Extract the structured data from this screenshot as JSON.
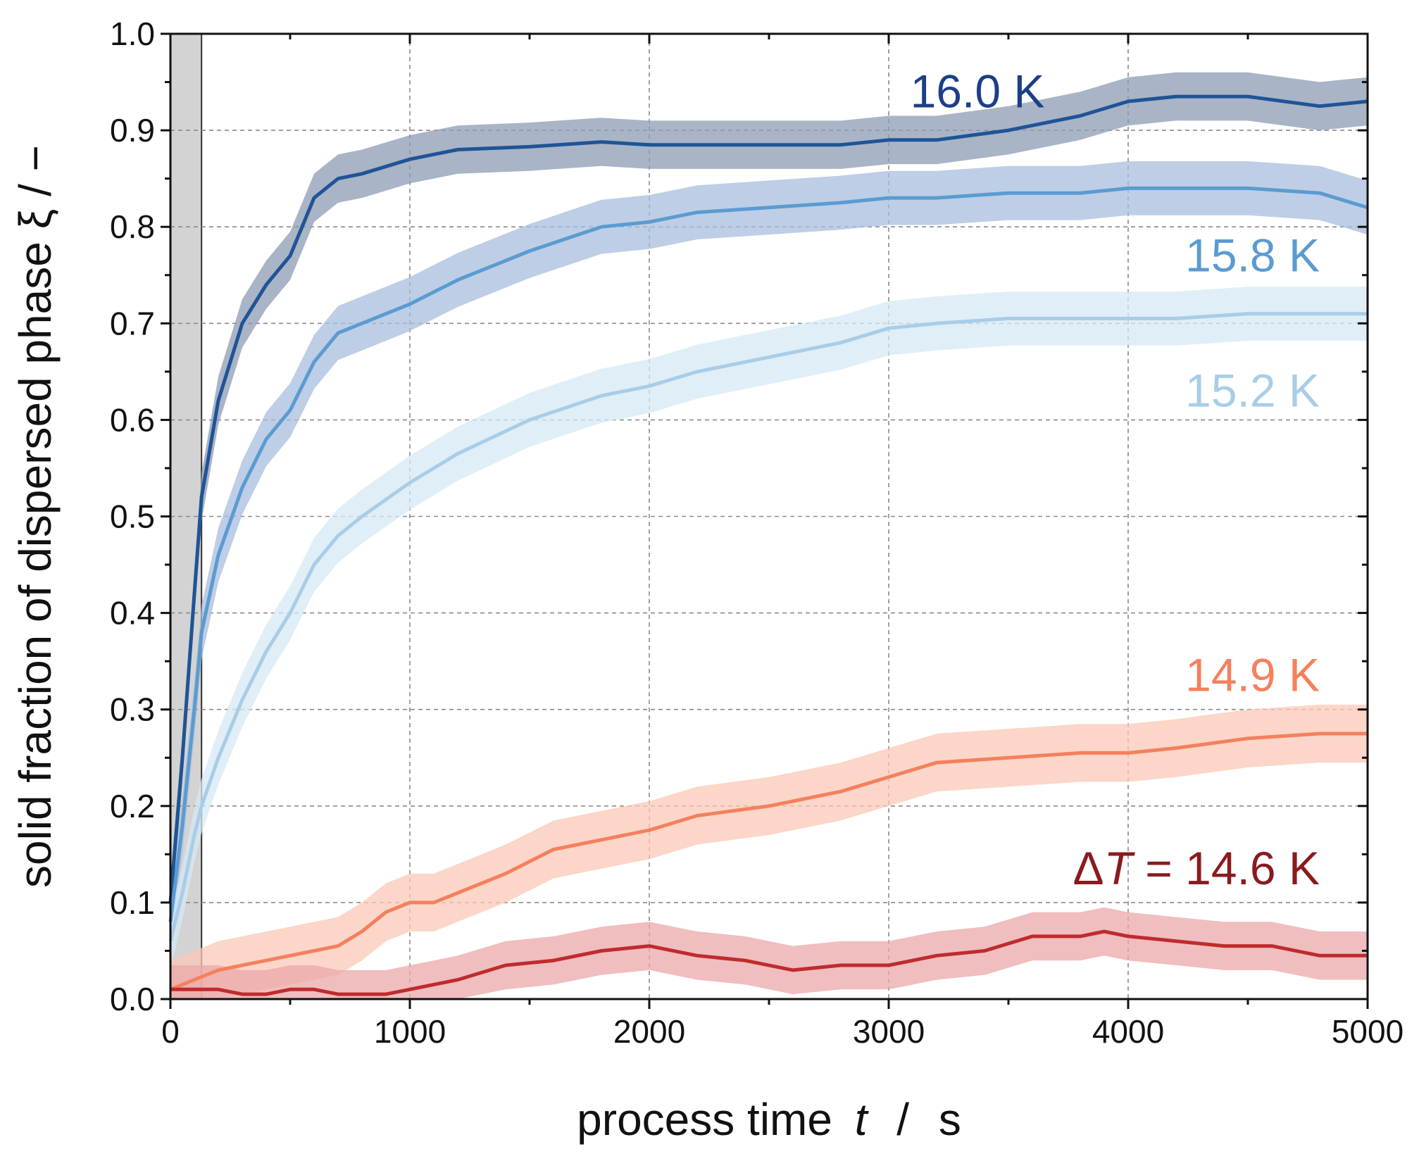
{
  "chart_data": {
    "type": "line",
    "title": "",
    "xlabel": "process time",
    "xlabel_symbol": "t",
    "xlabel_sep": "/",
    "xlabel_unit": "s",
    "ylabel": "solid fraction of dispersed phase ξ  /  −",
    "xlim": [
      0,
      5000
    ],
    "ylim": [
      0,
      1.0
    ],
    "xticks": [
      0,
      1000,
      2000,
      3000,
      4000,
      5000
    ],
    "xtick_labels": [
      "0",
      "1000",
      "2000",
      "3000",
      "4000",
      "5000"
    ],
    "yticks": [
      0.0,
      0.1,
      0.2,
      0.3,
      0.4,
      0.5,
      0.6,
      0.7,
      0.8,
      0.9,
      1.0
    ],
    "ytick_labels": [
      "0.0",
      "0.1",
      "0.2",
      "0.3",
      "0.4",
      "0.5",
      "0.6",
      "0.7",
      "0.8",
      "0.9",
      "1.0"
    ],
    "grid": true,
    "shaded_region": {
      "x_start": 0,
      "x_end": 130,
      "color": "#d3d3d3"
    },
    "series": [
      {
        "name": "16.0 K",
        "label": "16.0 K",
        "color": "#1f5496",
        "band_color": "#8c9bb4",
        "band_halfwidth": 0.025,
        "label_pos": [
          2900,
          0.94
        ],
        "x": [
          0,
          50,
          100,
          130,
          200,
          300,
          400,
          500,
          600,
          700,
          800,
          1000,
          1200,
          1500,
          1800,
          2000,
          2200,
          2500,
          2800,
          3000,
          3200,
          3500,
          3800,
          4000,
          4200,
          4500,
          4800,
          5000
        ],
        "y": [
          0.1,
          0.25,
          0.42,
          0.52,
          0.62,
          0.7,
          0.74,
          0.77,
          0.83,
          0.85,
          0.855,
          0.87,
          0.88,
          0.883,
          0.888,
          0.885,
          0.885,
          0.885,
          0.885,
          0.89,
          0.89,
          0.9,
          0.915,
          0.93,
          0.935,
          0.935,
          0.925,
          0.93
        ]
      },
      {
        "name": "15.8 K",
        "label": "15.8 K",
        "color": "#5b9bd0",
        "band_color": "#a8bedd",
        "band_halfwidth": 0.028,
        "label_pos": [
          4800,
          0.77
        ],
        "x": [
          0,
          50,
          100,
          130,
          200,
          300,
          400,
          500,
          600,
          700,
          800,
          1000,
          1200,
          1500,
          1800,
          2000,
          2200,
          2500,
          2800,
          3000,
          3200,
          3500,
          3800,
          4000,
          4200,
          4500,
          4800,
          5000
        ],
        "y": [
          0.08,
          0.18,
          0.3,
          0.38,
          0.46,
          0.53,
          0.58,
          0.61,
          0.66,
          0.69,
          0.7,
          0.72,
          0.745,
          0.775,
          0.8,
          0.805,
          0.815,
          0.82,
          0.825,
          0.83,
          0.83,
          0.835,
          0.835,
          0.84,
          0.84,
          0.84,
          0.835,
          0.82
        ]
      },
      {
        "name": "15.2 K",
        "label": "15.2 K",
        "color": "#a9cde7",
        "band_color": "#d6e8f4",
        "band_halfwidth": 0.028,
        "label_pos": [
          4800,
          0.63
        ],
        "x": [
          0,
          50,
          100,
          130,
          200,
          300,
          400,
          500,
          600,
          700,
          800,
          1000,
          1200,
          1500,
          1800,
          2000,
          2200,
          2500,
          2800,
          3000,
          3200,
          3500,
          3800,
          4000,
          4200,
          4500,
          4800,
          5000
        ],
        "y": [
          0.06,
          0.11,
          0.17,
          0.2,
          0.25,
          0.31,
          0.36,
          0.4,
          0.45,
          0.48,
          0.5,
          0.535,
          0.565,
          0.6,
          0.625,
          0.635,
          0.65,
          0.665,
          0.68,
          0.695,
          0.7,
          0.705,
          0.705,
          0.705,
          0.705,
          0.71,
          0.71,
          0.71
        ]
      },
      {
        "name": "14.9 K",
        "label": "14.9 K",
        "color": "#f4805e",
        "band_color": "#fbc8b6",
        "band_halfwidth": 0.03,
        "label_pos": [
          4800,
          0.335
        ],
        "x": [
          0,
          100,
          200,
          300,
          400,
          500,
          600,
          700,
          800,
          900,
          1000,
          1100,
          1200,
          1400,
          1600,
          1800,
          2000,
          2200,
          2500,
          2800,
          3000,
          3200,
          3500,
          3800,
          4000,
          4200,
          4500,
          4800,
          5000
        ],
        "y": [
          0.01,
          0.02,
          0.03,
          0.035,
          0.04,
          0.045,
          0.05,
          0.055,
          0.07,
          0.09,
          0.1,
          0.1,
          0.11,
          0.13,
          0.155,
          0.165,
          0.175,
          0.19,
          0.2,
          0.215,
          0.23,
          0.245,
          0.25,
          0.255,
          0.255,
          0.26,
          0.27,
          0.275,
          0.275
        ]
      },
      {
        "name": "ΔT = 14.6 K",
        "label": "ΔT = 14.6 K",
        "label_prefix": "Δ",
        "label_symbol": "T",
        "label_rest": " = 14.6 K",
        "color": "#c02b2e",
        "band_color": "#eba8aa",
        "band_halfwidth": 0.025,
        "label_pos": [
          4800,
          0.135
        ],
        "x": [
          0,
          100,
          200,
          300,
          400,
          500,
          600,
          700,
          800,
          900,
          1000,
          1100,
          1200,
          1400,
          1600,
          1800,
          2000,
          2200,
          2400,
          2600,
          2800,
          3000,
          3200,
          3400,
          3600,
          3800,
          3900,
          4000,
          4200,
          4400,
          4600,
          4800,
          5000
        ],
        "y": [
          0.01,
          0.01,
          0.01,
          0.005,
          0.005,
          0.01,
          0.01,
          0.005,
          0.005,
          0.005,
          0.01,
          0.015,
          0.02,
          0.035,
          0.04,
          0.05,
          0.055,
          0.045,
          0.04,
          0.03,
          0.035,
          0.035,
          0.045,
          0.05,
          0.065,
          0.065,
          0.07,
          0.065,
          0.06,
          0.055,
          0.055,
          0.045,
          0.045
        ]
      }
    ]
  }
}
